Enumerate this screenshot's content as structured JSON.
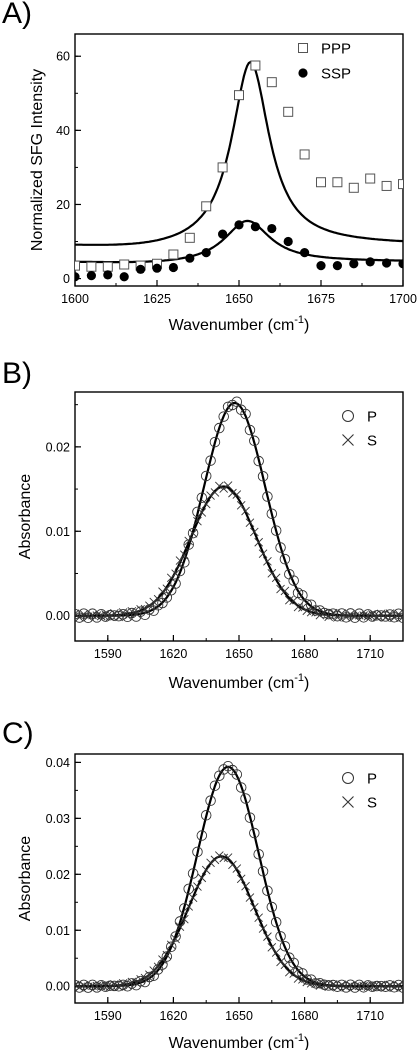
{
  "chart_data": [
    {
      "panel": "A)",
      "type": "scatter",
      "xlabel": "Wavenumber (cm",
      "xlabel_sup": "-1",
      "xlabel_tail": ")",
      "ylabel": "Normalized SFG Intensity",
      "xlim": [
        1600,
        1700
      ],
      "ylim": [
        -2,
        66
      ],
      "xticks": [
        1600,
        1625,
        1650,
        1675,
        1700
      ],
      "yticks": [
        0,
        20,
        40,
        60
      ],
      "legend_position": "top-right",
      "series": [
        {
          "name": "PPP",
          "marker": "open-square",
          "x": [
            1600,
            1605,
            1610,
            1615,
            1620,
            1625,
            1630,
            1635,
            1640,
            1645,
            1650,
            1655,
            1660,
            1665,
            1670,
            1675,
            1680,
            1685,
            1690,
            1695,
            1700
          ],
          "y": [
            3.5,
            3.2,
            3.2,
            3.8,
            3.5,
            4.0,
            6.5,
            11,
            19.5,
            30,
            49.5,
            57.5,
            53,
            45,
            33.5,
            26,
            26,
            24.5,
            27,
            25,
            25.5
          ]
        },
        {
          "name": "SSP",
          "marker": "filled-circle",
          "x": [
            1600,
            1605,
            1610,
            1615,
            1620,
            1625,
            1630,
            1635,
            1640,
            1645,
            1650,
            1655,
            1660,
            1665,
            1670,
            1675,
            1680,
            1685,
            1690,
            1695,
            1700
          ],
          "y": [
            0.5,
            0.8,
            1.0,
            0.5,
            2.5,
            2.8,
            3.0,
            5.5,
            7.0,
            12,
            14.5,
            14,
            13.5,
            10,
            7.0,
            3.5,
            3.5,
            4.0,
            4.5,
            4.2,
            4.0
          ]
        }
      ],
      "fits": [
        {
          "of": "PPP",
          "model": "lorentzian",
          "center": 1653.5,
          "width": 7.0,
          "amplitude": 50,
          "baseline": 9
        },
        {
          "of": "SSP",
          "model": "lorentzian",
          "center": 1652.5,
          "width": 8.5,
          "amplitude": 11.5,
          "baseline": 4.5
        }
      ]
    },
    {
      "panel": "B)",
      "type": "scatter",
      "xlabel": "Wavenumber (cm",
      "xlabel_sup": "-1",
      "xlabel_tail": ")",
      "ylabel": "Absorbance",
      "xlim": [
        1575,
        1725
      ],
      "ylim": [
        -0.003,
        0.0265
      ],
      "xticks": [
        1590,
        1620,
        1650,
        1680,
        1710
      ],
      "yticks": [
        0.0,
        0.01,
        0.02
      ],
      "ytick_labels": [
        "0.00",
        "0.01",
        "0.02"
      ],
      "legend_position": "top-right",
      "series": [
        {
          "name": "P",
          "marker": "open-circle",
          "model": "gaussian",
          "center": 1648,
          "sigma": 14,
          "amplitude": 0.0252,
          "x_start": 1575,
          "x_end": 1725,
          "x_step": 2
        },
        {
          "name": "S",
          "marker": "cross",
          "model": "gaussian",
          "center": 1643,
          "sigma": 15,
          "amplitude": 0.0153,
          "x_start": 1575,
          "x_end": 1725,
          "x_step": 2
        }
      ]
    },
    {
      "panel": "C)",
      "type": "scatter",
      "xlabel": "Wavenumber (cm",
      "xlabel_sup": "-1",
      "xlabel_tail": ")",
      "ylabel": "Absorbance",
      "xlim": [
        1575,
        1725
      ],
      "ylim": [
        -0.003,
        0.0415
      ],
      "xticks": [
        1590,
        1620,
        1650,
        1680,
        1710
      ],
      "yticks": [
        0.0,
        0.01,
        0.02,
        0.03,
        0.04
      ],
      "ytick_labels": [
        "0.00",
        "0.01",
        "0.02",
        "0.03",
        "0.04"
      ],
      "legend_position": "top-right",
      "series": [
        {
          "name": "P",
          "marker": "open-circle",
          "model": "gaussian",
          "center": 1645,
          "sigma": 14,
          "amplitude": 0.0392,
          "x_start": 1575,
          "x_end": 1725,
          "x_step": 2
        },
        {
          "name": "S",
          "marker": "cross",
          "model": "gaussian",
          "center": 1642,
          "sigma": 15,
          "amplitude": 0.0232,
          "x_start": 1575,
          "x_end": 1725,
          "x_step": 2
        }
      ]
    }
  ]
}
